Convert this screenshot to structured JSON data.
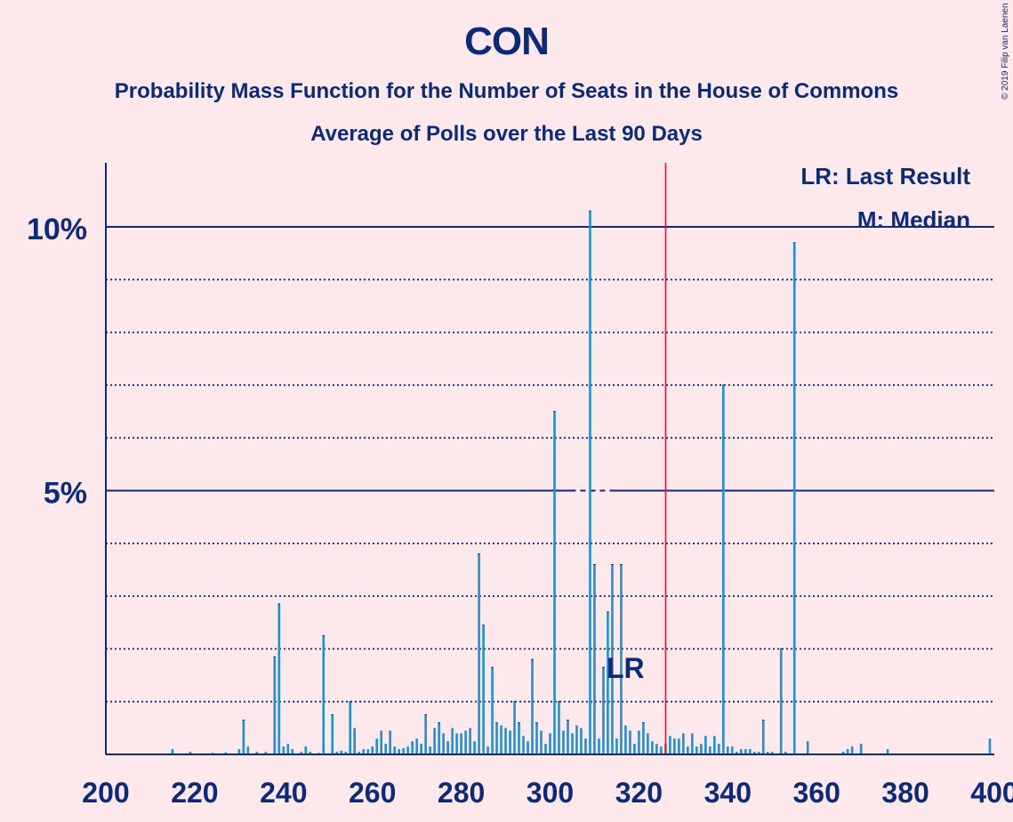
{
  "title": "CON",
  "subtitle": "Probability Mass Function for the Number of Seats in the House of Commons",
  "subtitle2": "Average of Polls over the Last 90 Days",
  "copyright": "© 2019 Filip van Laenen",
  "legend": {
    "lr": "LR: Last Result",
    "m": "M: Median"
  },
  "colors": {
    "bar": "#1e90d6",
    "axis": "#0b2a7a",
    "last_result_line": "#e0182d",
    "background": "#fde8ec"
  },
  "chart_data": {
    "type": "bar",
    "xlim": [
      200,
      400
    ],
    "ylim": [
      0,
      11
    ],
    "xticks": [
      200,
      220,
      240,
      260,
      280,
      300,
      320,
      340,
      360,
      380,
      400
    ],
    "yticks": [
      {
        "value": 5,
        "label": "5%"
      },
      {
        "value": 10,
        "label": "10%"
      }
    ],
    "minor_gridlines": [
      1,
      2,
      3,
      4,
      6,
      7,
      8,
      9
    ],
    "last_result": 326,
    "last_result_label": "LR",
    "median": 309,
    "median_label": "M",
    "seats": [
      215,
      219,
      224,
      227,
      230,
      231,
      232,
      234,
      236,
      238,
      239,
      240,
      241,
      242,
      244,
      245,
      246,
      248,
      249,
      251,
      252,
      253,
      254,
      255,
      256,
      257,
      258,
      259,
      260,
      261,
      262,
      263,
      264,
      265,
      266,
      267,
      268,
      269,
      270,
      271,
      272,
      273,
      274,
      275,
      276,
      277,
      278,
      279,
      280,
      281,
      282,
      283,
      284,
      285,
      286,
      287,
      288,
      289,
      290,
      291,
      292,
      293,
      294,
      295,
      296,
      297,
      298,
      299,
      300,
      301,
      302,
      303,
      304,
      305,
      306,
      307,
      308,
      309,
      310,
      311,
      312,
      313,
      314,
      315,
      316,
      317,
      318,
      319,
      320,
      321,
      322,
      323,
      324,
      325,
      326,
      327,
      328,
      329,
      330,
      331,
      332,
      333,
      334,
      335,
      336,
      337,
      338,
      339,
      340,
      341,
      342,
      343,
      344,
      345,
      346,
      347,
      348,
      349,
      350,
      352,
      353,
      355,
      358,
      366,
      367,
      368,
      370,
      376,
      399
    ],
    "values": [
      0.1,
      0.05,
      0.03,
      0.04,
      0.1,
      0.65,
      0.15,
      0.05,
      0.05,
      1.85,
      2.85,
      0.15,
      0.2,
      0.1,
      0.05,
      0.15,
      0.05,
      0.03,
      2.25,
      0.75,
      0.05,
      0.07,
      0.05,
      1.0,
      0.5,
      0.05,
      0.1,
      0.1,
      0.15,
      0.3,
      0.45,
      0.2,
      0.45,
      0.15,
      0.1,
      0.12,
      0.15,
      0.25,
      0.3,
      0.2,
      0.75,
      0.15,
      0.5,
      0.6,
      0.4,
      0.25,
      0.5,
      0.4,
      0.4,
      0.45,
      0.5,
      0.25,
      3.8,
      2.45,
      0.15,
      1.65,
      0.6,
      0.55,
      0.5,
      0.45,
      1.0,
      0.6,
      0.35,
      0.25,
      1.8,
      0.6,
      0.45,
      0.2,
      0.4,
      6.5,
      1.0,
      0.45,
      0.65,
      0.4,
      0.55,
      0.5,
      0.3,
      10.3,
      3.6,
      0.3,
      1.65,
      2.7,
      3.6,
      0.3,
      3.6,
      0.55,
      0.45,
      0.2,
      0.45,
      0.6,
      0.4,
      0.25,
      0.2,
      0.15,
      0.2,
      0.35,
      0.3,
      0.3,
      0.4,
      0.15,
      0.4,
      0.15,
      0.2,
      0.35,
      0.15,
      0.35,
      0.2,
      7.0,
      0.15,
      0.15,
      0.05,
      0.1,
      0.1,
      0.1,
      0.05,
      0.05,
      0.65,
      0.05,
      0.05,
      2.0,
      0.05,
      9.7,
      0.25,
      0.05,
      0.1,
      0.15,
      0.2,
      0.1,
      0.3
    ]
  }
}
